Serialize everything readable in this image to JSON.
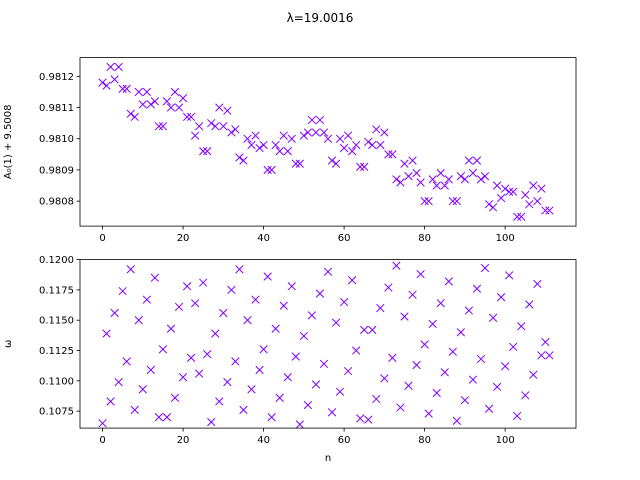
{
  "figure": {
    "title": "λ=19.0016"
  },
  "chart_data": [
    {
      "type": "scatter",
      "marker": "x",
      "color": "#8000ff",
      "xlabel": "",
      "ylabel": "A₀(1) + 9.5008",
      "xlim": [
        -5.6,
        117.6
      ],
      "ylim": [
        0.98072,
        0.98126
      ],
      "xticks": [
        0,
        20,
        40,
        60,
        80,
        100
      ],
      "xtick_labels": [
        "0",
        "20",
        "40",
        "60",
        "80",
        "100"
      ],
      "yticks": [
        0.9808,
        0.9809,
        0.981,
        0.9811,
        0.9812
      ],
      "ytick_labels": [
        "0.9808",
        "0.9809",
        "0.9810",
        "0.9811",
        "0.9812"
      ],
      "x": [
        0,
        1,
        2,
        3,
        4,
        5,
        6,
        7,
        8,
        9,
        10,
        11,
        12,
        13,
        14,
        15,
        16,
        17,
        18,
        19,
        20,
        21,
        22,
        23,
        24,
        25,
        26,
        27,
        28,
        29,
        30,
        31,
        32,
        33,
        34,
        35,
        36,
        37,
        38,
        39,
        40,
        41,
        42,
        43,
        44,
        45,
        46,
        47,
        48,
        49,
        50,
        51,
        52,
        53,
        54,
        55,
        56,
        57,
        58,
        59,
        60,
        61,
        62,
        63,
        64,
        65,
        66,
        67,
        68,
        69,
        70,
        71,
        72,
        73,
        74,
        75,
        76,
        77,
        78,
        79,
        80,
        81,
        82,
        83,
        84,
        85,
        86,
        87,
        88,
        89,
        90,
        91,
        92,
        93,
        94,
        95,
        96,
        97,
        98,
        99,
        100,
        101,
        102,
        103,
        104,
        105,
        106,
        107,
        108,
        109,
        110,
        111
      ],
      "y": [
        0.98118,
        0.98117,
        0.98123,
        0.98119,
        0.98123,
        0.98116,
        0.98116,
        0.98108,
        0.98107,
        0.98115,
        0.98111,
        0.98115,
        0.98111,
        0.98112,
        0.98104,
        0.98104,
        0.98112,
        0.9811,
        0.98115,
        0.9811,
        0.98113,
        0.98107,
        0.98107,
        0.98101,
        0.98104,
        0.98096,
        0.98096,
        0.98105,
        0.98104,
        0.9811,
        0.98104,
        0.98109,
        0.98102,
        0.98103,
        0.98094,
        0.98093,
        0.981,
        0.98098,
        0.98101,
        0.98097,
        0.98098,
        0.9809,
        0.9809,
        0.98098,
        0.98096,
        0.98101,
        0.98096,
        0.981,
        0.98092,
        0.98092,
        0.98101,
        0.98102,
        0.98106,
        0.98102,
        0.98106,
        0.98102,
        0.981,
        0.98093,
        0.98092,
        0.981,
        0.98097,
        0.98101,
        0.98096,
        0.98098,
        0.98091,
        0.98091,
        0.98099,
        0.98098,
        0.98103,
        0.98098,
        0.98102,
        0.98095,
        0.98095,
        0.98087,
        0.98086,
        0.98092,
        0.98088,
        0.98093,
        0.98089,
        0.98086,
        0.9808,
        0.9808,
        0.98087,
        0.98085,
        0.98089,
        0.98085,
        0.98087,
        0.9808,
        0.9808,
        0.98088,
        0.98087,
        0.98093,
        0.98089,
        0.98093,
        0.98087,
        0.98088,
        0.98079,
        0.98078,
        0.98085,
        0.98081,
        0.98084,
        0.98083,
        0.98083,
        0.98075,
        0.98075,
        0.98082,
        0.98079,
        0.98085,
        0.9808,
        0.98084,
        0.98077,
        0.98077
      ]
    },
    {
      "type": "scatter",
      "marker": "x",
      "color": "#8000ff",
      "xlabel": "n",
      "ylabel": "ω",
      "xlim": [
        -5.6,
        117.6
      ],
      "ylim": [
        0.1061,
        0.12
      ],
      "xticks": [
        0,
        20,
        40,
        60,
        80,
        100
      ],
      "xtick_labels": [
        "0",
        "20",
        "40",
        "60",
        "80",
        "100"
      ],
      "yticks": [
        0.1075,
        0.11,
        0.1125,
        0.115,
        0.1175,
        0.12
      ],
      "ytick_labels": [
        "0.1075",
        "0.1100",
        "0.1125",
        "0.1150",
        "0.1175",
        "0.1200"
      ],
      "x": [
        0,
        1,
        2,
        3,
        4,
        5,
        6,
        7,
        8,
        9,
        10,
        11,
        12,
        13,
        14,
        15,
        16,
        17,
        18,
        19,
        20,
        21,
        22,
        23,
        24,
        25,
        26,
        27,
        28,
        29,
        30,
        31,
        32,
        33,
        34,
        35,
        36,
        37,
        38,
        39,
        40,
        41,
        42,
        43,
        44,
        45,
        46,
        47,
        48,
        49,
        50,
        51,
        52,
        53,
        54,
        55,
        56,
        57,
        58,
        59,
        60,
        61,
        62,
        63,
        64,
        65,
        66,
        67,
        68,
        69,
        70,
        71,
        72,
        73,
        74,
        75,
        76,
        77,
        78,
        79,
        80,
        81,
        82,
        83,
        84,
        85,
        86,
        87,
        88,
        89,
        90,
        91,
        92,
        93,
        94,
        95,
        96,
        97,
        98,
        99,
        100,
        101,
        102,
        103,
        104,
        105,
        106,
        107,
        108,
        109,
        110,
        111
      ],
      "y": [
        0.1065,
        0.1139,
        0.1083,
        0.1156,
        0.1099,
        0.1174,
        0.1116,
        0.1192,
        0.1076,
        0.115,
        0.1093,
        0.1167,
        0.1109,
        0.1185,
        0.107,
        0.1126,
        0.107,
        0.1143,
        0.1086,
        0.1161,
        0.1103,
        0.1178,
        0.1119,
        0.1164,
        0.1106,
        0.1181,
        0.1122,
        0.1066,
        0.1139,
        0.1083,
        0.1156,
        0.1099,
        0.1175,
        0.1116,
        0.1192,
        0.1076,
        0.115,
        0.1093,
        0.1167,
        0.1109,
        0.1126,
        0.1186,
        0.107,
        0.1143,
        0.1086,
        0.1162,
        0.1103,
        0.1178,
        0.112,
        0.1064,
        0.1137,
        0.108,
        0.1154,
        0.1097,
        0.1172,
        0.1114,
        0.119,
        0.1074,
        0.1148,
        0.1091,
        0.1165,
        0.1108,
        0.1183,
        0.1125,
        0.1069,
        0.1142,
        0.1068,
        0.1142,
        0.1085,
        0.116,
        0.1102,
        0.1177,
        0.1119,
        0.1195,
        0.1078,
        0.1153,
        0.1096,
        0.1171,
        0.1113,
        0.1188,
        0.113,
        0.1073,
        0.1147,
        0.109,
        0.1164,
        0.1107,
        0.1182,
        0.1124,
        0.1067,
        0.114,
        0.1084,
        0.1158,
        0.1101,
        0.1176,
        0.1118,
        0.1193,
        0.1077,
        0.1152,
        0.1095,
        0.1169,
        0.1112,
        0.1187,
        0.1128,
        0.1071,
        0.1145,
        0.1088,
        0.1163,
        0.1105,
        0.118,
        0.1121,
        0.1132,
        0.1121
      ]
    }
  ]
}
